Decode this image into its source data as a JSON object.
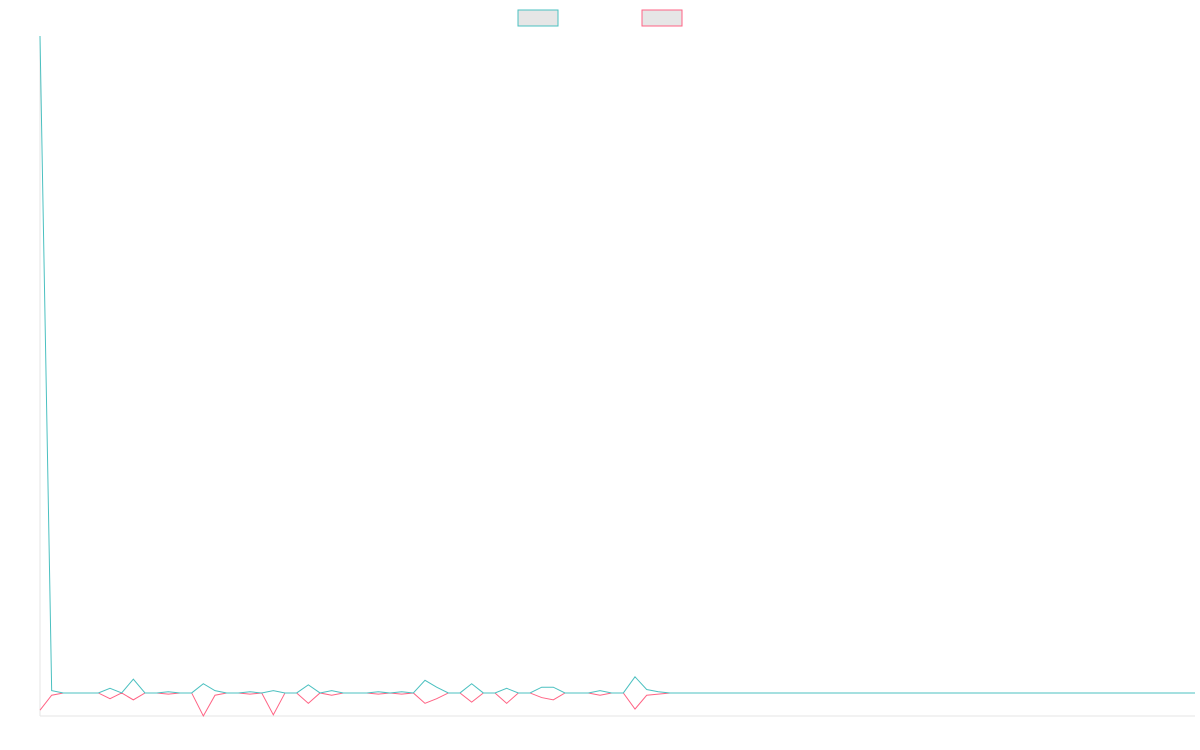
{
  "chart_data": {
    "type": "line",
    "categories": [
      null,
      null,
      null,
      null,
      null,
      null,
      null,
      null,
      null,
      null,
      null,
      null,
      null,
      null,
      null,
      null,
      null,
      null,
      null,
      null,
      null,
      null,
      null,
      null,
      null,
      null,
      null,
      null,
      null,
      null,
      null,
      null,
      null,
      null,
      null,
      null,
      null,
      null,
      null,
      null,
      null,
      null,
      null,
      null,
      null,
      null,
      null,
      null,
      null,
      null,
      null,
      null,
      null,
      null,
      null,
      null,
      null,
      null,
      null,
      null,
      null,
      null,
      null,
      null,
      null,
      null,
      null,
      null,
      null,
      null,
      null,
      null,
      null,
      null,
      null,
      null,
      null,
      null,
      null,
      null,
      null,
      null,
      null,
      null,
      null,
      null,
      null,
      null,
      null,
      null,
      null,
      null,
      null,
      null,
      null,
      null,
      null,
      null,
      null,
      null
    ],
    "series": [
      {
        "color": "#4bc0c0",
        "values": [
          28.5,
          0.1,
          0,
          0,
          0,
          0,
          0.2,
          0,
          0.6,
          0,
          0,
          0.05,
          0,
          0,
          0.4,
          0.1,
          0,
          0,
          0.05,
          0,
          0.1,
          0,
          0,
          0.35,
          0,
          0.1,
          0,
          0,
          0,
          0.05,
          0,
          0.05,
          0,
          0.55,
          0.25,
          0,
          0,
          0.4,
          0,
          0,
          0.2,
          0,
          0,
          0.25,
          0.25,
          0,
          0,
          0,
          0.1,
          0,
          0,
          0.7,
          0.15,
          0.05,
          0,
          0,
          0,
          0,
          0,
          0,
          0,
          0,
          0,
          0,
          0,
          0,
          0,
          0,
          0,
          0,
          0,
          0,
          0,
          0,
          0,
          0,
          0,
          0,
          0,
          0,
          0,
          0,
          0,
          0,
          0,
          0,
          0,
          0,
          0,
          0,
          0,
          0,
          0,
          0,
          0,
          0,
          0,
          0,
          0,
          0
        ]
      },
      {
        "color": "#ff6384",
        "values": [
          -0.75,
          -0.1,
          0,
          0,
          0,
          0,
          -0.25,
          0,
          -0.3,
          0,
          0,
          -0.05,
          0,
          0,
          -1,
          -0.1,
          0,
          0,
          -0.05,
          0,
          -0.95,
          0,
          0,
          -0.45,
          0,
          -0.1,
          0,
          0,
          0,
          -0.05,
          0,
          -0.05,
          0,
          -0.45,
          -0.25,
          0,
          0,
          -0.4,
          0,
          0,
          -0.45,
          0,
          0,
          -0.2,
          -0.3,
          0,
          0,
          0,
          -0.1,
          0,
          0,
          -0.7,
          -0.1,
          -0.05,
          0,
          0,
          0,
          0,
          0,
          0,
          0,
          0,
          0,
          0,
          0,
          0,
          0,
          0,
          0,
          0,
          0,
          0,
          0,
          0,
          0,
          0,
          0,
          0,
          0,
          0,
          0,
          0,
          0,
          0,
          0,
          0,
          0,
          0,
          0,
          0,
          0,
          0,
          0,
          0,
          0,
          0,
          0,
          0,
          0,
          0
        ]
      }
    ],
    "ylim": [
      -1,
      28.5
    ]
  }
}
